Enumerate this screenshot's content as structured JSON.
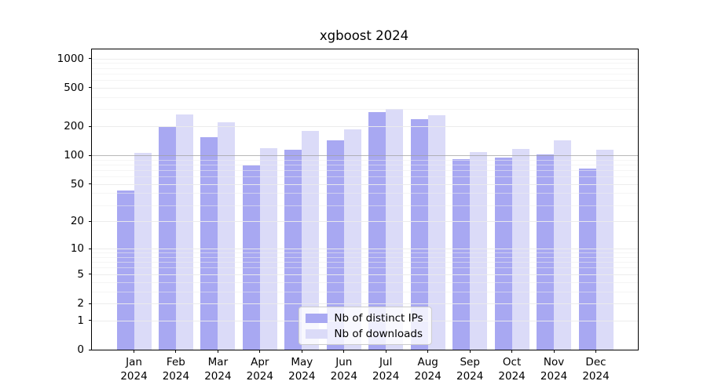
{
  "chart_data": {
    "type": "bar",
    "title": "xgboost 2024",
    "categories": [
      "Jan 2024",
      "Feb 2024",
      "Mar 2024",
      "Apr 2024",
      "May 2024",
      "Jun 2024",
      "Jul 2024",
      "Aug 2024",
      "Sep 2024",
      "Oct 2024",
      "Nov 2024",
      "Dec 2024"
    ],
    "series": [
      {
        "name": "Nb of distinct IPs",
        "color": "#a8a8f2",
        "values": [
          43,
          197,
          155,
          78,
          114,
          143,
          280,
          237,
          91,
          94,
          102,
          73
        ]
      },
      {
        "name": "Nb of downloads",
        "color": "#dbdbf8",
        "values": [
          105,
          265,
          218,
          118,
          178,
          186,
          302,
          259,
          108,
          116,
          144,
          115
        ]
      }
    ],
    "yscale": "log1p",
    "ylim": [
      0,
      1244
    ],
    "yticks": [
      0,
      1,
      2,
      5,
      10,
      20,
      50,
      100,
      200,
      500,
      1000
    ],
    "yticks_minor": [
      3,
      4,
      6,
      7,
      8,
      9,
      30,
      40,
      60,
      70,
      80,
      90,
      300,
      400,
      600,
      700,
      800,
      900
    ],
    "emphasized_gridline": 100,
    "grid": true,
    "legend_position": "lower center",
    "xlabel": "",
    "ylabel": ""
  }
}
